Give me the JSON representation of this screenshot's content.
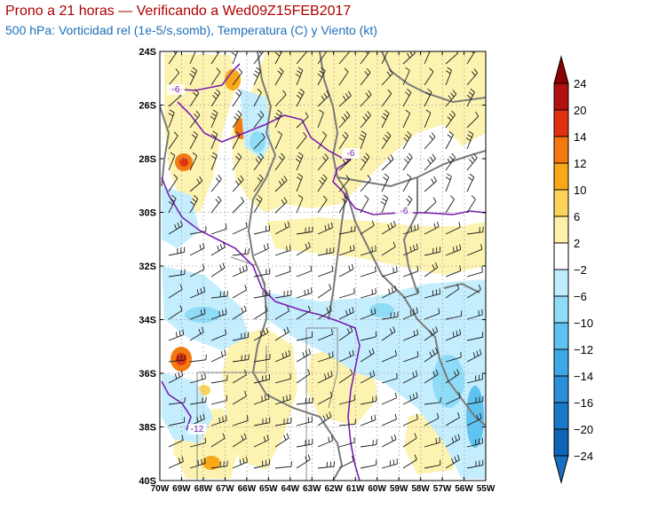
{
  "header": {
    "title": "Prono a 21 horas — Verificando a Wed09Z15FEB2017",
    "subtitle": "500 hPa: Vorticidad rel (1e-5/s,somb), Temperatura (C) y Viento (kt)"
  },
  "map": {
    "lat_labels": [
      "24S",
      "26S",
      "28S",
      "30S",
      "32S",
      "34S",
      "36S",
      "38S",
      "40S"
    ],
    "lon_labels": [
      "70W",
      "69W",
      "68W",
      "67W",
      "66W",
      "65W",
      "64W",
      "63W",
      "62W",
      "61W",
      "60W",
      "59W",
      "58W",
      "57W",
      "56W",
      "55W"
    ],
    "contour_labels": [
      "-6",
      "-6",
      "-6",
      "-12"
    ]
  },
  "colorbar": {
    "labels": [
      "24",
      "20",
      "14",
      "12",
      "10",
      "6",
      "2",
      "−2",
      "−6",
      "−10",
      "−12",
      "−14",
      "−16",
      "−20",
      "−24"
    ],
    "colors": [
      "#8b0000",
      "#b01010",
      "#e03010",
      "#f47a10",
      "#f9a81a",
      "#fbd35a",
      "#fdf0a8",
      "#ffffff",
      "#bfeeff",
      "#8fdcf8",
      "#5fc2f0",
      "#3ea8e6",
      "#2a8ed8",
      "#1a78c8",
      "#0e64b6"
    ],
    "top_color": "#8b0000",
    "bottom_color": "#1a6fc0"
  }
}
